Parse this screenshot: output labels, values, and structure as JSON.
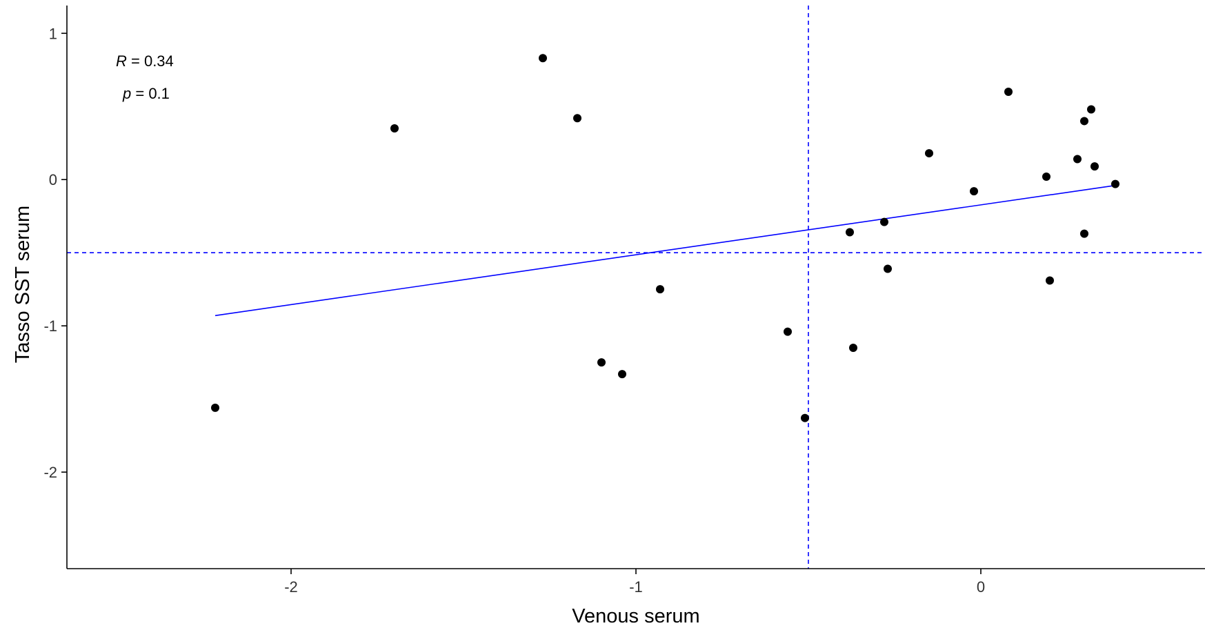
{
  "chart_data": {
    "type": "scatter",
    "xlabel": "Venous serum",
    "ylabel": "Tasso SST serum",
    "xlim": [
      -2.65,
      0.65
    ],
    "ylim": [
      -2.66,
      1.19
    ],
    "x_ticks": [
      -2,
      -1,
      0
    ],
    "y_ticks": [
      -2,
      -1,
      0,
      1
    ],
    "grid": false,
    "annotations": {
      "r_symbol": "R",
      "r_value": " = 0.34",
      "p_symbol": "p",
      "p_value": " = 0.1"
    },
    "reference_lines": {
      "vertical_x": -0.5,
      "horizontal_y": -0.5,
      "color": "#0000ff",
      "style": "dashed"
    },
    "fit_line": {
      "color": "#0000ff",
      "x": [
        -2.22,
        0.39
      ],
      "y": [
        -0.93,
        -0.04
      ]
    },
    "points": [
      {
        "x": -2.22,
        "y": -1.56
      },
      {
        "x": -1.7,
        "y": 0.35
      },
      {
        "x": -1.27,
        "y": 0.83
      },
      {
        "x": -1.17,
        "y": 0.42
      },
      {
        "x": -1.1,
        "y": -1.25
      },
      {
        "x": -1.04,
        "y": -1.33
      },
      {
        "x": -0.93,
        "y": -0.75
      },
      {
        "x": -0.56,
        "y": -1.04
      },
      {
        "x": -0.51,
        "y": -1.63
      },
      {
        "x": -0.38,
        "y": -0.36
      },
      {
        "x": -0.37,
        "y": -1.15
      },
      {
        "x": -0.28,
        "y": -0.29
      },
      {
        "x": -0.27,
        "y": -0.61
      },
      {
        "x": -0.15,
        "y": 0.18
      },
      {
        "x": -0.02,
        "y": -0.08
      },
      {
        "x": 0.08,
        "y": 0.6
      },
      {
        "x": 0.19,
        "y": 0.02
      },
      {
        "x": 0.2,
        "y": -0.69
      },
      {
        "x": 0.28,
        "y": 0.14
      },
      {
        "x": 0.3,
        "y": 0.4
      },
      {
        "x": 0.3,
        "y": -0.37
      },
      {
        "x": 0.32,
        "y": 0.48
      },
      {
        "x": 0.33,
        "y": 0.09
      },
      {
        "x": 0.39,
        "y": -0.03
      }
    ],
    "colors": {
      "points": "#000000",
      "axis": "#000000"
    }
  }
}
